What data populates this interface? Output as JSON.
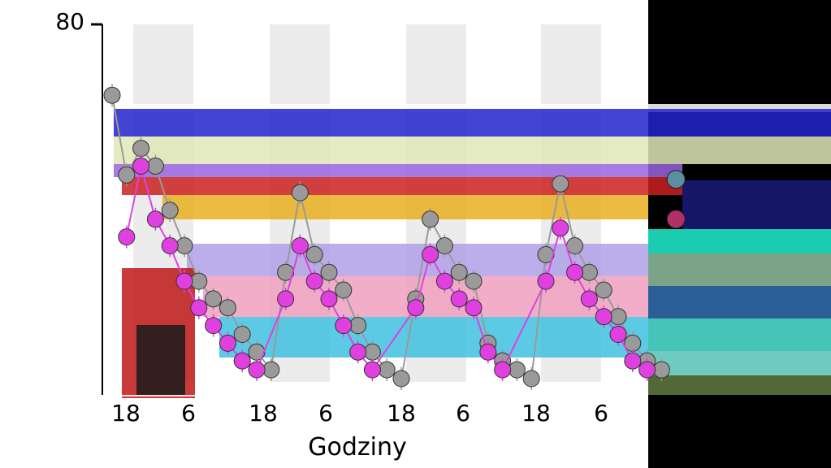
{
  "chart_data": {
    "type": "line",
    "title": "",
    "xlabel": "Godziny",
    "ylabel": "",
    "ylim": [
      0,
      80
    ],
    "y_top_tick_label": "80",
    "x_tick_labels": [
      "18",
      "6",
      "18",
      "6",
      "18",
      "6",
      "18",
      "6"
    ],
    "night_shading": "light-grey vertical bands",
    "series": [
      {
        "color": "#9a9a9a",
        "points": [
          [
            1,
            64
          ],
          [
            2,
            46
          ],
          [
            3,
            52
          ],
          [
            4,
            48
          ],
          [
            5,
            38
          ],
          [
            6,
            30
          ],
          [
            7,
            22
          ],
          [
            8,
            18
          ],
          [
            9,
            16
          ],
          [
            10,
            10
          ],
          [
            11,
            6
          ],
          [
            12,
            2
          ],
          [
            13,
            24
          ],
          [
            14,
            42
          ],
          [
            15,
            28
          ],
          [
            16,
            24
          ],
          [
            17,
            20
          ],
          [
            18,
            12
          ],
          [
            19,
            6
          ],
          [
            20,
            2
          ],
          [
            21,
            0
          ],
          [
            22,
            18
          ],
          [
            23,
            36
          ],
          [
            24,
            30
          ],
          [
            25,
            24
          ],
          [
            26,
            22
          ],
          [
            27,
            8
          ],
          [
            28,
            4
          ],
          [
            29,
            2
          ],
          [
            30,
            0
          ],
          [
            31,
            28
          ],
          [
            32,
            44
          ],
          [
            33,
            30
          ],
          [
            34,
            24
          ],
          [
            35,
            20
          ],
          [
            36,
            14
          ],
          [
            37,
            8
          ],
          [
            38,
            4
          ],
          [
            39,
            2
          ]
        ]
      },
      {
        "color": "#e040e0",
        "points": [
          [
            2,
            32
          ],
          [
            3,
            48
          ],
          [
            4,
            36
          ],
          [
            5,
            30
          ],
          [
            6,
            22
          ],
          [
            7,
            16
          ],
          [
            8,
            12
          ],
          [
            9,
            8
          ],
          [
            10,
            4
          ],
          [
            11,
            2
          ],
          [
            13,
            18
          ],
          [
            14,
            30
          ],
          [
            15,
            22
          ],
          [
            16,
            18
          ],
          [
            17,
            12
          ],
          [
            18,
            6
          ],
          [
            19,
            2
          ],
          [
            22,
            16
          ],
          [
            23,
            28
          ],
          [
            24,
            22
          ],
          [
            25,
            18
          ],
          [
            26,
            16
          ],
          [
            27,
            6
          ],
          [
            28,
            2
          ],
          [
            31,
            22
          ],
          [
            32,
            34
          ],
          [
            33,
            24
          ],
          [
            34,
            18
          ],
          [
            35,
            14
          ],
          [
            36,
            10
          ],
          [
            37,
            4
          ],
          [
            38,
            2
          ]
        ]
      }
    ],
    "standalone_points": [
      {
        "x": 40,
        "y": 45,
        "color": "#5a8fa0"
      },
      {
        "x": 40,
        "y": 36,
        "color": "#b0306a"
      }
    ]
  }
}
